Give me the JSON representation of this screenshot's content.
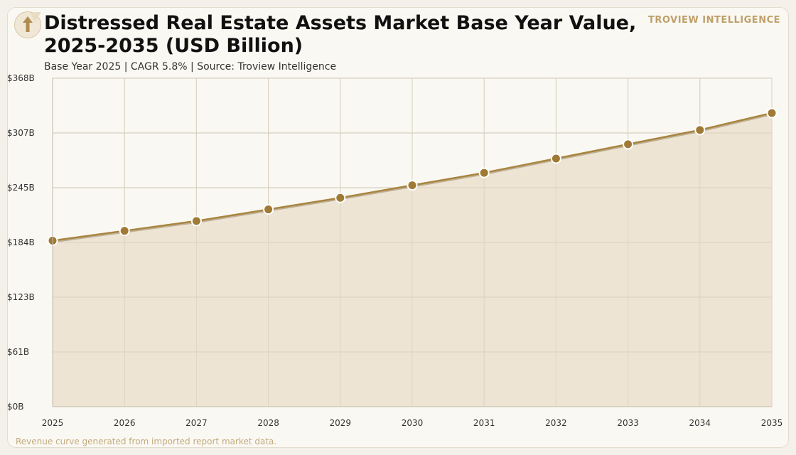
{
  "header": {
    "title": "Distressed Real Estate Assets Market Base Year Value, 2025-2035 (USD Billion)",
    "subtitle": "Base Year 2025 | CAGR 5.8% | Source: Troview Intelligence",
    "brand": "TROVIEW INTELLIGENCE",
    "logo_icon": "arrow-up-icon"
  },
  "footnote": "Revenue curve generated from imported report market data.",
  "colors": {
    "line": "#a8843f",
    "marker": "#a07a35",
    "area": "#ece3d2",
    "grid": "#cfc6b6",
    "accent": "#bfa06a"
  },
  "chart_data": {
    "type": "area",
    "x": [
      "2025",
      "2026",
      "2027",
      "2028",
      "2029",
      "2030",
      "2031",
      "2032",
      "2033",
      "2034",
      "2035"
    ],
    "series": [
      {
        "values": [
          186,
          197,
          208,
          221,
          234,
          248,
          262,
          278,
          294,
          310,
          329
        ]
      }
    ],
    "yticks": [
      "$0B",
      "$61B",
      "$123B",
      "$184B",
      "$245B",
      "$307B",
      "$368B"
    ],
    "ylim": [
      0,
      368
    ],
    "xlabel": "",
    "ylabel": "",
    "grid": true,
    "legend": "none"
  }
}
